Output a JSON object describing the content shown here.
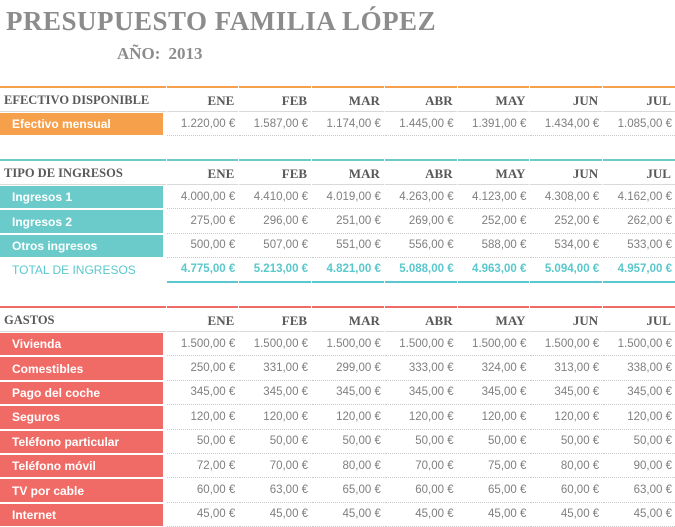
{
  "title": "PRESUPUESTO FAMILIA LÓPEZ",
  "year_label": "AÑO:",
  "year": "2013",
  "colors": {
    "orange": "#f7a04b",
    "teal": "#6bcbcb",
    "red": "#f06b66",
    "teal_text": "#5ac8cc"
  },
  "months": [
    "ENE",
    "FEB",
    "MAR",
    "ABR",
    "MAY",
    "JUN",
    "JUL"
  ],
  "cash": {
    "header": "EFECTIVO DISPONIBLE",
    "rows": [
      {
        "label": "Efectivo mensual",
        "values": [
          "1.220,00 €",
          "1.587,00 €",
          "1.174,00 €",
          "1.445,00 €",
          "1.391,00 €",
          "1.434,00 €",
          "1.085,00 €"
        ]
      }
    ]
  },
  "income": {
    "header": "TIPO DE INGRESOS",
    "rows": [
      {
        "label": "Ingresos 1",
        "values": [
          "4.000,00 €",
          "4.410,00 €",
          "4.019,00 €",
          "4.263,00 €",
          "4.123,00 €",
          "4.308,00 €",
          "4.162,00 €"
        ]
      },
      {
        "label": "Ingresos 2",
        "values": [
          "275,00 €",
          "296,00 €",
          "251,00 €",
          "269,00 €",
          "252,00 €",
          "252,00 €",
          "262,00 €"
        ]
      },
      {
        "label": "Otros ingresos",
        "values": [
          "500,00 €",
          "507,00 €",
          "551,00 €",
          "556,00 €",
          "588,00 €",
          "534,00 €",
          "533,00 €"
        ]
      }
    ],
    "total": {
      "label": "TOTAL DE INGRESOS",
      "values": [
        "4.775,00 €",
        "5.213,00 €",
        "4.821,00 €",
        "5.088,00 €",
        "4.963,00 €",
        "5.094,00 €",
        "4.957,00 €"
      ]
    }
  },
  "expenses": {
    "header": "GASTOS",
    "rows": [
      {
        "label": "Vivienda",
        "values": [
          "1.500,00 €",
          "1.500,00 €",
          "1.500,00 €",
          "1.500,00 €",
          "1.500,00 €",
          "1.500,00 €",
          "1.500,00 €"
        ]
      },
      {
        "label": "Comestibles",
        "values": [
          "250,00 €",
          "331,00 €",
          "299,00 €",
          "333,00 €",
          "324,00 €",
          "313,00 €",
          "338,00 €"
        ]
      },
      {
        "label": "Pago del coche",
        "values": [
          "345,00 €",
          "345,00 €",
          "345,00 €",
          "345,00 €",
          "345,00 €",
          "345,00 €",
          "345,00 €"
        ]
      },
      {
        "label": "Seguros",
        "values": [
          "120,00 €",
          "120,00 €",
          "120,00 €",
          "120,00 €",
          "120,00 €",
          "120,00 €",
          "120,00 €"
        ]
      },
      {
        "label": "Teléfono particular",
        "values": [
          "50,00 €",
          "50,00 €",
          "50,00 €",
          "50,00 €",
          "50,00 €",
          "50,00 €",
          "50,00 €"
        ]
      },
      {
        "label": "Teléfono móvil",
        "values": [
          "72,00 €",
          "70,00 €",
          "80,00 €",
          "70,00 €",
          "75,00 €",
          "80,00 €",
          "90,00 €"
        ]
      },
      {
        "label": "TV por cable",
        "values": [
          "60,00 €",
          "63,00 €",
          "65,00 €",
          "60,00 €",
          "65,00 €",
          "60,00 €",
          "63,00 €"
        ]
      },
      {
        "label": "Internet",
        "values": [
          "45,00 €",
          "45,00 €",
          "45,00 €",
          "45,00 €",
          "45,00 €",
          "45,00 €",
          "45,00 €"
        ]
      }
    ]
  }
}
